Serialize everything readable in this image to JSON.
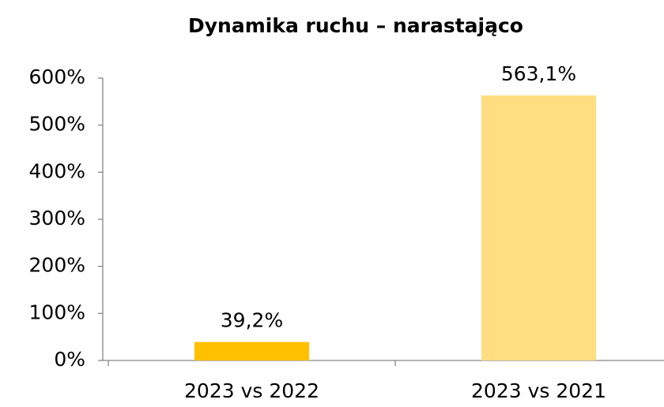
{
  "chart_data": {
    "type": "bar",
    "title": "Dynamika ruchu – narastająco",
    "categories": [
      "2023 vs 2022",
      "2023 vs 2021"
    ],
    "values": [
      39.2,
      563.1
    ],
    "value_labels": [
      "39,2%",
      "563,1%"
    ],
    "colors": [
      "#ffc000",
      "#ffdd80"
    ],
    "ylim": [
      0,
      600
    ],
    "yticks": [
      {
        "value": 0,
        "label": "0%"
      },
      {
        "value": 100,
        "label": "100%"
      },
      {
        "value": 200,
        "label": "200%"
      },
      {
        "value": 300,
        "label": "300%"
      },
      {
        "value": 400,
        "label": "400%"
      },
      {
        "value": 500,
        "label": "500%"
      },
      {
        "value": 600,
        "label": "600%"
      }
    ],
    "grid": false
  }
}
